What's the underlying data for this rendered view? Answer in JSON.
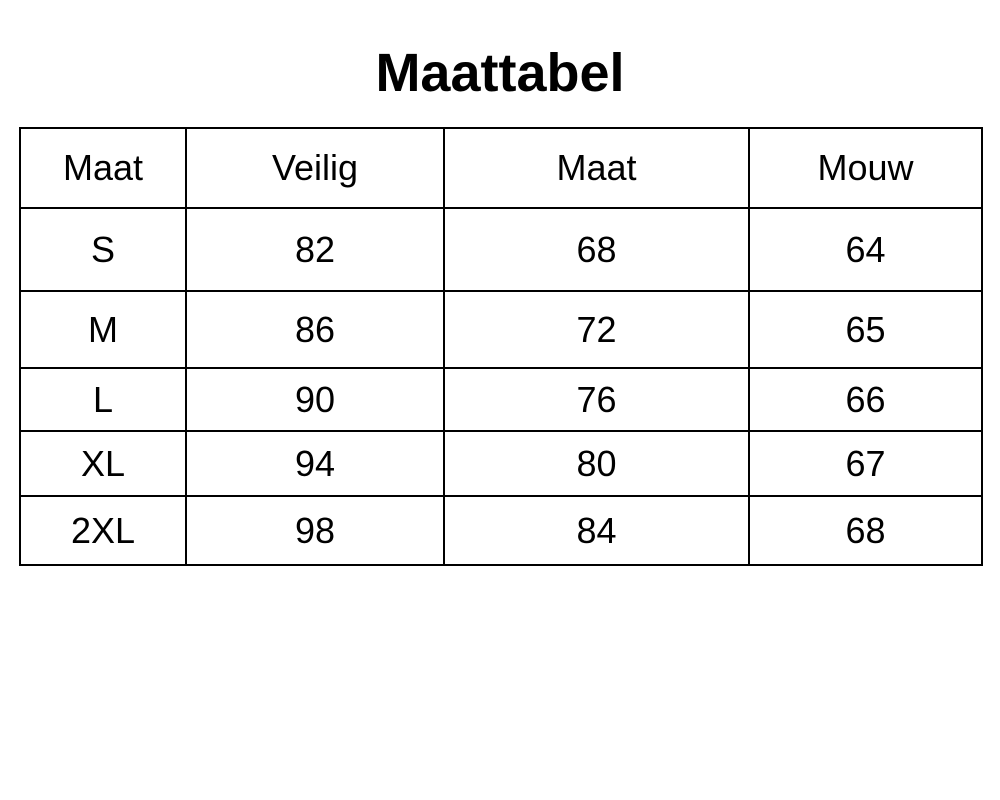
{
  "page": {
    "background_color": "#ffffff",
    "text_color": "#000000",
    "border_color": "#000000"
  },
  "chart_data": {
    "type": "table",
    "title": "Maattabel",
    "columns": [
      "Maat",
      "Veilig",
      "Maat",
      "Mouw"
    ],
    "rows": [
      [
        "S",
        "82",
        "68",
        "64"
      ],
      [
        "M",
        "86",
        "72",
        "65"
      ],
      [
        "L",
        "90",
        "76",
        "66"
      ],
      [
        "XL",
        "94",
        "80",
        "67"
      ],
      [
        "2XL",
        "98",
        "84",
        "68"
      ]
    ],
    "layout_hints": {
      "grid": "all-borders",
      "header_row": true,
      "alignment": "center"
    }
  }
}
